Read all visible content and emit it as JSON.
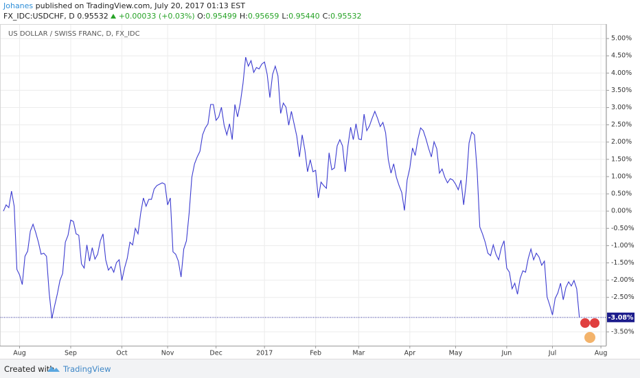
{
  "header": {
    "author": "Johanes",
    "published": "published on TradingView.com, July 20, 2017 01:13 EST",
    "symbol": "FX_IDC:USDCHF, D",
    "price": "0.95532",
    "change": "+0.00033 (+0.03%)",
    "ohlc": [
      {
        "label": "O:",
        "value": "0.95499"
      },
      {
        "label": "H:",
        "value": "0.95659"
      },
      {
        "label": "L:",
        "value": "0.95440"
      },
      {
        "label": "C:",
        "value": "0.95532"
      }
    ]
  },
  "footer": {
    "made": "Created with",
    "brand": "TradingView"
  },
  "chart_data": {
    "type": "line",
    "title": "US DOLLAR / SWISS FRANC, D, FX_IDC",
    "color": "#3b3bd0",
    "grid": true,
    "last_value_label": "-3.08%",
    "categories": [
      null,
      null,
      null,
      null,
      null,
      null,
      "Aug",
      null,
      null,
      null,
      null,
      null,
      null,
      null,
      null,
      null,
      null,
      null,
      null,
      null,
      null,
      null,
      null,
      null,
      null,
      "Sep",
      null,
      null,
      null,
      null,
      null,
      null,
      null,
      null,
      null,
      null,
      null,
      null,
      null,
      null,
      null,
      null,
      null,
      null,
      "Oct",
      null,
      null,
      null,
      null,
      null,
      null,
      null,
      null,
      null,
      null,
      null,
      null,
      null,
      null,
      null,
      null,
      "Nov",
      null,
      null,
      null,
      null,
      null,
      null,
      null,
      null,
      null,
      null,
      null,
      null,
      null,
      null,
      null,
      null,
      null,
      "Dec",
      null,
      null,
      null,
      null,
      null,
      null,
      null,
      null,
      null,
      null,
      null,
      null,
      null,
      null,
      null,
      null,
      null,
      "2017",
      null,
      null,
      null,
      null,
      null,
      null,
      null,
      null,
      null,
      null,
      null,
      null,
      null,
      null,
      null,
      null,
      null,
      null,
      "Feb",
      null,
      null,
      null,
      null,
      null,
      null,
      null,
      null,
      null,
      null,
      null,
      null,
      null,
      null,
      null,
      "Mar",
      null,
      null,
      null,
      null,
      null,
      null,
      null,
      null,
      null,
      null,
      null,
      null,
      null,
      null,
      null,
      null,
      null,
      null,
      "Apr",
      null,
      null,
      null,
      null,
      null,
      null,
      null,
      null,
      null,
      null,
      null,
      null,
      null,
      null,
      null,
      null,
      "May",
      null,
      null,
      null,
      null,
      null,
      null,
      null,
      null,
      null,
      null,
      null,
      null,
      null,
      null,
      null,
      null,
      null,
      null,
      "Jun",
      null,
      null,
      null,
      null,
      null,
      null,
      null,
      null,
      null,
      null,
      null,
      null,
      null,
      null,
      null,
      null,
      "Jul",
      null,
      null,
      null,
      null,
      null,
      null,
      null,
      null,
      null,
      null,
      null,
      null,
      null,
      null,
      null,
      null,
      null,
      "Aug",
      null
    ],
    "values": [
      0,
      0.18,
      0.1,
      0.58,
      0.14,
      -1.69,
      -1.85,
      -2.13,
      -1.31,
      -1.16,
      -0.58,
      -0.38,
      -0.62,
      -0.9,
      -1.25,
      -1.22,
      -1.31,
      -2.37,
      -3.11,
      -2.75,
      -2.41,
      -2.01,
      -1.81,
      -0.9,
      -0.7,
      -0.26,
      -0.3,
      -0.66,
      -0.7,
      -1.53,
      -1.65,
      -0.98,
      -1.45,
      -1.06,
      -1.39,
      -1.25,
      -0.86,
      -0.66,
      -1.41,
      -1.71,
      -1.61,
      -1.77,
      -1.49,
      -1.41,
      -2.01,
      -1.65,
      -1.37,
      -0.9,
      -0.98,
      -0.5,
      -0.66,
      -0.06,
      0.38,
      0.14,
      0.34,
      0.34,
      0.64,
      0.74,
      0.78,
      0.82,
      0.78,
      0.18,
      0.38,
      -1.18,
      -1.25,
      -1.45,
      -1.91,
      -1.1,
      -0.86,
      -0.06,
      0.98,
      1.37,
      1.57,
      1.73,
      2.21,
      2.41,
      2.53,
      3.09,
      3.09,
      2.63,
      2.73,
      3.01,
      2.49,
      2.21,
      2.53,
      2.07,
      3.09,
      2.73,
      3.13,
      3.69,
      4.46,
      4.2,
      4.36,
      4.02,
      4.16,
      4.12,
      4.26,
      4.32,
      3.96,
      3.29,
      3.96,
      4.2,
      3.92,
      2.83,
      3.13,
      3.01,
      2.49,
      2.89,
      2.53,
      2.17,
      1.57,
      2.21,
      1.77,
      1.14,
      1.49,
      1.14,
      1.18,
      0.38,
      0.84,
      0.74,
      0.66,
      1.69,
      1.2,
      1.25,
      1.89,
      2.07,
      1.89,
      1.14,
      1.89,
      2.43,
      2.07,
      2.53,
      2.09,
      2.07,
      2.81,
      2.33,
      2.47,
      2.69,
      2.89,
      2.69,
      2.45,
      2.57,
      2.27,
      1.49,
      1.1,
      1.37,
      0.98,
      0.74,
      0.54,
      0.02,
      0.9,
      1.25,
      1.83,
      1.61,
      2.09,
      2.41,
      2.33,
      2.09,
      1.81,
      1.57,
      2.01,
      1.81,
      1.1,
      1.22,
      0.98,
      0.82,
      0.94,
      0.9,
      0.78,
      0.62,
      0.9,
      0.18,
      0.86,
      1.97,
      2.29,
      2.21,
      1.18,
      -0.46,
      -0.66,
      -0.9,
      -1.22,
      -1.29,
      -0.98,
      -1.25,
      -1.41,
      -1.06,
      -0.86,
      -1.65,
      -1.77,
      -2.25,
      -2.09,
      -2.41,
      -1.95,
      -1.73,
      -1.77,
      -1.37,
      -1.1,
      -1.41,
      -1.22,
      -1.33,
      -1.57,
      -1.45,
      -2.49,
      -2.73,
      -3.01,
      -2.53,
      -2.37,
      -2.09,
      -2.57,
      -2.21,
      -2.05,
      -2.17,
      -2.01,
      -2.25,
      -3.08,
      null,
      null,
      null,
      null,
      null,
      null,
      null,
      null,
      null
    ],
    "ylim": [
      -3.9,
      5.42
    ],
    "yticks": [
      {
        "value": 5,
        "label": "5.00%"
      },
      {
        "value": 4.5,
        "label": "4.50%"
      },
      {
        "value": 4,
        "label": "4.00%"
      },
      {
        "value": 3.5,
        "label": "3.50%"
      },
      {
        "value": 3,
        "label": "3.00%"
      },
      {
        "value": 2.5,
        "label": "2.50%"
      },
      {
        "value": 2,
        "label": "2.00%"
      },
      {
        "value": 1.5,
        "label": "1.50%"
      },
      {
        "value": 1,
        "label": "1.00%"
      },
      {
        "value": 0.5,
        "label": "0.50%"
      },
      {
        "value": 0,
        "label": "0.00%"
      },
      {
        "value": -0.5,
        "label": "-0.50%"
      },
      {
        "value": -1,
        "label": "-1.00%"
      },
      {
        "value": -1.5,
        "label": "-1.50%"
      },
      {
        "value": -2,
        "label": "-2.00%"
      },
      {
        "value": -2.5,
        "label": "-2.50%"
      },
      {
        "value": -3.5,
        "label": "-3.50%"
      }
    ]
  }
}
